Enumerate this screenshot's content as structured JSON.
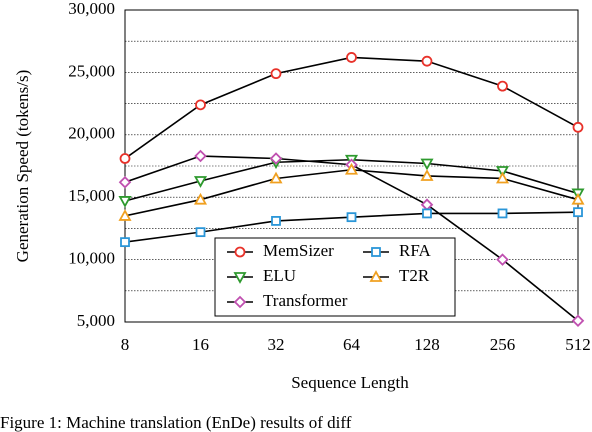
{
  "chart_data": {
    "type": "line",
    "xlabel": "Sequence Length",
    "ylabel": "Generation Speed (tokens/s)",
    "caption": "Figure 1: Machine translation (EnDe) results of diff",
    "categories": [
      "8",
      "16",
      "32",
      "64",
      "128",
      "256",
      "512"
    ],
    "ylim": [
      5000,
      30000
    ],
    "yticks": [
      {
        "value": 5000,
        "label": "5,000"
      },
      {
        "value": 10000,
        "label": "10,000"
      },
      {
        "value": 15000,
        "label": "15,000"
      },
      {
        "value": 20000,
        "label": "20,000"
      },
      {
        "value": 25000,
        "label": "25,000"
      },
      {
        "value": 30000,
        "label": "30,000"
      }
    ],
    "minor_yticks": [
      7500,
      12500,
      17500,
      22500,
      27500
    ],
    "grid": true,
    "line_color": "#000000",
    "series": [
      {
        "name": "MemSizer",
        "color": "#e8322a",
        "marker": "circle",
        "values": [
          18100,
          22400,
          24900,
          26200,
          25900,
          23900,
          20600
        ]
      },
      {
        "name": "ELU",
        "color": "#2e9a2e",
        "marker": "triangle-down",
        "values": [
          14700,
          16300,
          17800,
          18000,
          17700,
          17100,
          15300
        ]
      },
      {
        "name": "Transformer",
        "color": "#c050b0",
        "marker": "diamond",
        "values": [
          16200,
          18300,
          18100,
          17600,
          14400,
          10000,
          5100
        ]
      },
      {
        "name": "RFA",
        "color": "#2a96d8",
        "marker": "square",
        "values": [
          11400,
          12200,
          13100,
          13400,
          13700,
          13700,
          13800
        ]
      },
      {
        "name": "T2R",
        "color": "#f0a020",
        "marker": "triangle-up",
        "values": [
          13500,
          14800,
          16500,
          17200,
          16700,
          16500,
          14800
        ]
      }
    ]
  }
}
